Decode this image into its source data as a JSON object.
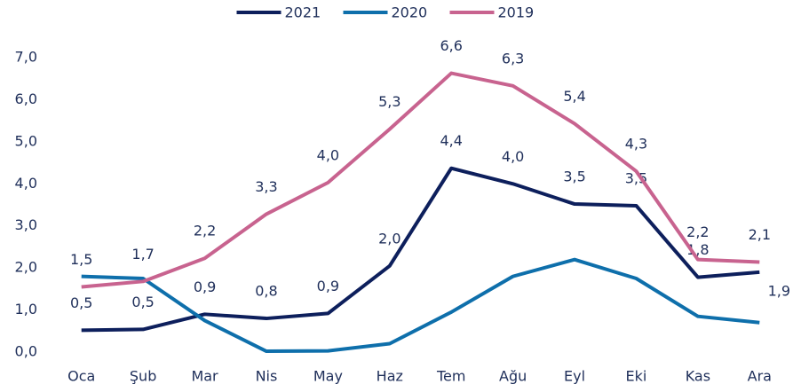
{
  "chart_data": {
    "type": "line",
    "categories": [
      "Oca",
      "Şub",
      "Mar",
      "Nis",
      "May",
      "Haz",
      "Tem",
      "Ağu",
      "Eyl",
      "Eki",
      "Kas",
      "Ara"
    ],
    "series": [
      {
        "name": "2021",
        "color": "#0d1f5c",
        "values": [
          0.52,
          0.54,
          0.9,
          0.8,
          0.92,
          2.05,
          4.37,
          4.0,
          3.52,
          3.48,
          1.78,
          1.9
        ],
        "value_labels": [
          "0,5",
          "0,5",
          "0,9",
          "0,8",
          "0,9",
          "2,0",
          "4,4",
          "4,0",
          "3,5",
          "3,5",
          "1,8",
          "1,9"
        ]
      },
      {
        "name": "2020",
        "color": "#0e6fab",
        "values": [
          1.8,
          1.75,
          0.75,
          0.02,
          0.03,
          0.2,
          0.95,
          1.8,
          2.2,
          1.75,
          0.85,
          0.7
        ]
      },
      {
        "name": "2019",
        "color": "#c8638f",
        "values": [
          1.55,
          1.68,
          2.23,
          3.28,
          4.03,
          5.3,
          6.63,
          6.33,
          5.43,
          4.3,
          2.2,
          2.14
        ],
        "value_labels": [
          "1,5",
          "1,7",
          "2,2",
          "3,3",
          "4,0",
          "5,3",
          "6,6",
          "6,3",
          "5,4",
          "4,3",
          "2,2",
          "2,1"
        ]
      }
    ],
    "ylim": [
      0,
      7
    ],
    "yticks": [
      {
        "value": 0,
        "label": "0,0"
      },
      {
        "value": 1,
        "label": "1,0"
      },
      {
        "value": 2,
        "label": "2,0"
      },
      {
        "value": 3,
        "label": "3,0"
      },
      {
        "value": 4,
        "label": "4,0"
      },
      {
        "value": 5,
        "label": "5,0"
      },
      {
        "value": 6,
        "label": "6,0"
      },
      {
        "value": 7,
        "label": "7,0"
      }
    ],
    "grid": false,
    "legend": "top"
  }
}
